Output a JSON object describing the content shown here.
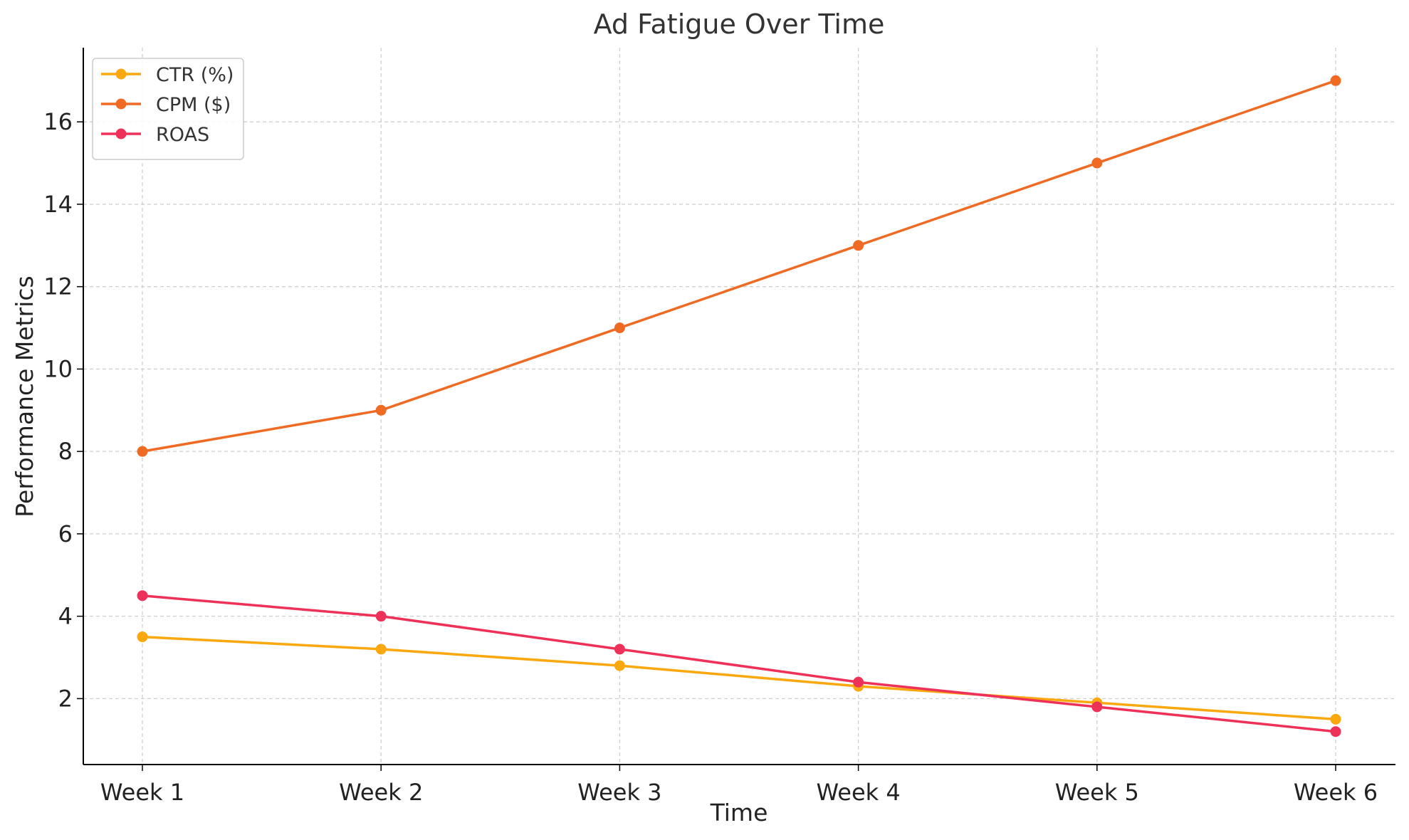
{
  "chart_data": {
    "type": "line",
    "title": "Ad Fatigue Over Time",
    "xlabel": "Time",
    "ylabel": "Performance Metrics",
    "categories": [
      "Week 1",
      "Week 2",
      "Week 3",
      "Week 4",
      "Week 5",
      "Week 6"
    ],
    "yticks": [
      2,
      4,
      6,
      8,
      10,
      12,
      14,
      16
    ],
    "ylim": [
      0.4,
      17.8
    ],
    "grid": true,
    "legend_position": "top-left",
    "series": [
      {
        "name": "CTR (%)",
        "color": "#F9A80F",
        "values": [
          3.5,
          3.2,
          2.8,
          2.3,
          1.9,
          1.5
        ]
      },
      {
        "name": "CPM ($)",
        "color": "#EF6B24",
        "values": [
          8,
          9,
          11,
          13,
          15,
          17
        ]
      },
      {
        "name": "ROAS",
        "color": "#EE3158",
        "values": [
          4.5,
          4.0,
          3.2,
          2.4,
          1.8,
          1.2
        ]
      }
    ]
  }
}
